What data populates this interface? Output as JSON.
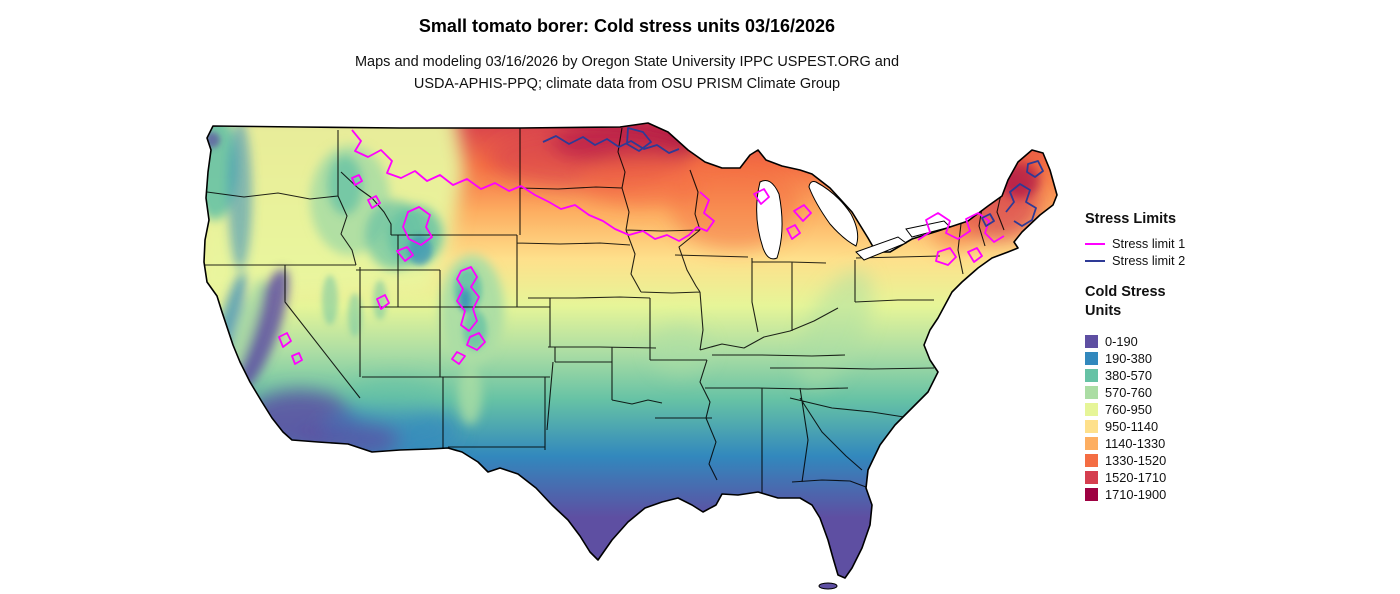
{
  "header": {
    "title": "Small tomato borer: Cold stress units 03/16/2026",
    "subtitle_line1": "Maps and modeling 03/16/2026 by Oregon State University IPPC USPEST.ORG and",
    "subtitle_line2": "USDA-APHIS-PPQ; climate data from OSU PRISM Climate Group"
  },
  "legend": {
    "stress_limits": {
      "title": "Stress Limits",
      "items": [
        {
          "label": "Stress limit 1",
          "color": "#ff00ff"
        },
        {
          "label": "Stress limit 2",
          "color": "#2e3a96"
        }
      ]
    },
    "cold_stress": {
      "title_line1": "Cold Stress",
      "title_line2": "Units",
      "classes": [
        {
          "label": "0-190",
          "color": "#5e4fa2"
        },
        {
          "label": "190-380",
          "color": "#3288bd"
        },
        {
          "label": "380-570",
          "color": "#66c2a5"
        },
        {
          "label": "570-760",
          "color": "#abdda4"
        },
        {
          "label": "760-950",
          "color": "#e6f598"
        },
        {
          "label": "950-1140",
          "color": "#fee08b"
        },
        {
          "label": "1140-1330",
          "color": "#fdae61"
        },
        {
          "label": "1330-1520",
          "color": "#f46d43"
        },
        {
          "label": "1520-1710",
          "color": "#d53e4f"
        },
        {
          "label": "1710-1900",
          "color": "#9e0142"
        }
      ]
    }
  },
  "map": {
    "region": "Contiguous United States",
    "kind": "cold stress units raster with stress limit contours"
  }
}
